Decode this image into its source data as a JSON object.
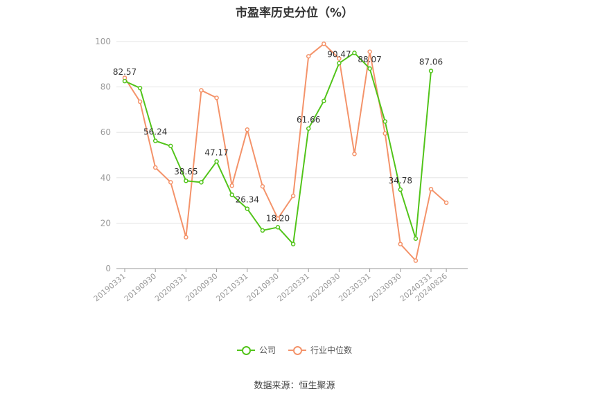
{
  "chart_data": {
    "type": "line",
    "title": "市盈率历史分位（%）",
    "xlabel": "",
    "ylabel": "",
    "ylim": [
      0,
      100
    ],
    "y_ticks": [
      0,
      20,
      40,
      60,
      80,
      100
    ],
    "x_tick_labels": [
      "20190331",
      "20190930",
      "20200331",
      "20200930",
      "20210331",
      "20210930",
      "20220331",
      "20220930",
      "20230331",
      "20230930",
      "20240331",
      "20240826"
    ],
    "x": [
      "20190331",
      "20190630",
      "20190930",
      "20191231",
      "20200331",
      "20200630",
      "20200930",
      "20201231",
      "20210331",
      "20210630",
      "20210930",
      "20211231",
      "20220331",
      "20220630",
      "20220930",
      "20221231",
      "20230331",
      "20230630",
      "20230930",
      "20231231",
      "20240331",
      "20240826"
    ],
    "grid": true,
    "legend_position": "bottom",
    "series": [
      {
        "name": "公司",
        "color": "#52c41a",
        "values": [
          82.57,
          79.5,
          56.24,
          54.0,
          38.65,
          38.0,
          47.17,
          32.5,
          26.34,
          16.8,
          18.2,
          10.8,
          61.66,
          73.8,
          90.47,
          95.0,
          88.07,
          64.8,
          34.78,
          13.2,
          87.06,
          null
        ],
        "data_labels": [
          {
            "index": 0,
            "text": "82.57"
          },
          {
            "index": 2,
            "text": "56.24"
          },
          {
            "index": 4,
            "text": "38.65"
          },
          {
            "index": 6,
            "text": "47.17"
          },
          {
            "index": 8,
            "text": "26.34"
          },
          {
            "index": 10,
            "text": "18.20"
          },
          {
            "index": 12,
            "text": "61.66"
          },
          {
            "index": 14,
            "text": "90.47"
          },
          {
            "index": 16,
            "text": "88.07"
          },
          {
            "index": 18,
            "text": "34.78"
          },
          {
            "index": 20,
            "text": "87.06"
          }
        ]
      },
      {
        "name": "行业中位数",
        "color": "#f4936a",
        "values": [
          84.0,
          73.5,
          44.5,
          38.0,
          13.8,
          78.5,
          75.2,
          36.5,
          61.2,
          36.2,
          22.0,
          32.0,
          93.5,
          99.0,
          92.5,
          50.5,
          95.5,
          59.5,
          10.8,
          3.5,
          35.0,
          29.0
        ]
      }
    ]
  },
  "source_text": "数据来源：恒生聚源"
}
